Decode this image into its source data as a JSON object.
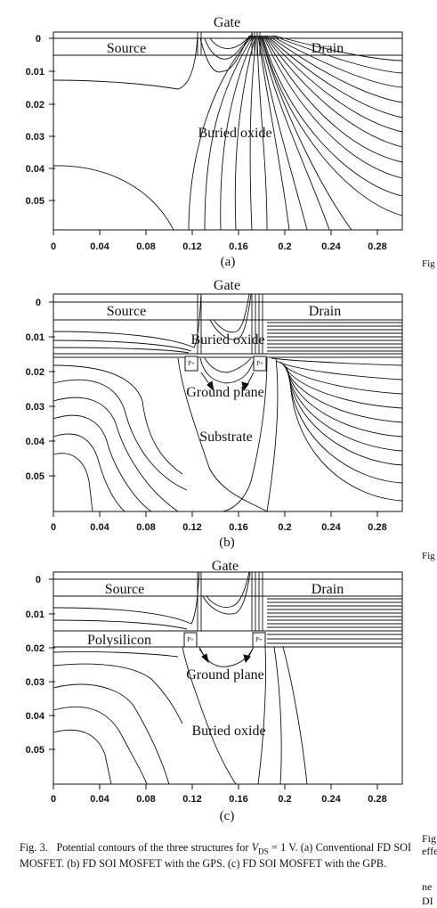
{
  "figure": {
    "y_ticks": [
      "0",
      "0.01",
      "0.02",
      "0.03",
      "0.04",
      "0.05"
    ],
    "x_ticks": [
      "0",
      "0.04",
      "0.08",
      "0.12",
      "0.16",
      "0.2",
      "0.24",
      "0.28"
    ],
    "panels": [
      {
        "id": "a",
        "label": "(a)",
        "gate": "Gate",
        "source": "Source",
        "drain": "Drain",
        "main_region": "Buried oxide"
      },
      {
        "id": "b",
        "label": "(b)",
        "gate": "Gate",
        "source": "Source",
        "drain": "Drain",
        "oxide": "Buried oxide",
        "plane": "Ground plane",
        "substrate": "Substrate",
        "p_left": "P+",
        "p_right": "P+"
      },
      {
        "id": "c",
        "label": "(c)",
        "gate": "Gate",
        "source": "Source",
        "drain": "Drain",
        "poly": "Polysilicon",
        "plane": "Ground plane",
        "main_region": "Buried oxide",
        "p_left": "P+",
        "p_right": "P+"
      }
    ]
  },
  "caption": {
    "prefix": "Fig. 3.",
    "text1": "Potential contours of the three structures for",
    "vds": "V",
    "vds_sub": "DS",
    "text2": "= 1 V. (a) Conventional FD SOI MOSFET. (b) FD SOI MOSFET with the GPS. (c) FD SOI MOSFET with the GPB."
  },
  "right_margin": {
    "fig1": "Fig",
    "fig2": "Fig",
    "fig3": "Fig",
    "eff": "effe",
    "ne": "ne",
    "di": "DI"
  }
}
